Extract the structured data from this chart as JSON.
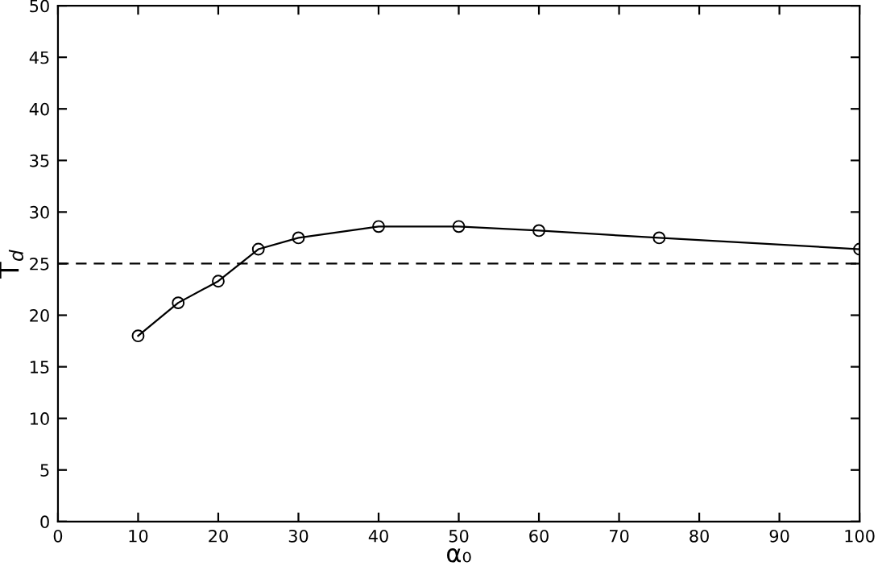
{
  "chart_data": {
    "type": "line",
    "xlabel": "α₀",
    "ylabel": "T$_{d}$",
    "x": [
      10,
      15,
      20,
      25,
      30,
      40,
      50,
      60,
      75,
      100
    ],
    "series": [
      {
        "color": "#000000",
        "values": [
          18,
          21.2,
          23.3,
          26.4,
          27.5,
          28.6,
          28.6,
          28.2,
          27.5,
          26.4
        ]
      }
    ],
    "marker": "circle",
    "line_style": "solid",
    "xlim": [
      0,
      100
    ],
    "ylim": [
      0,
      50
    ],
    "xticks": [
      0,
      10,
      20,
      30,
      40,
      50,
      60,
      70,
      80,
      90,
      100
    ],
    "yticks": [
      0,
      5,
      10,
      15,
      20,
      25,
      30,
      35,
      40,
      45,
      50
    ],
    "ref_lines": [
      {
        "axis": "y",
        "value": 25,
        "label": null,
        "color": "#000000",
        "line_style": "dashed"
      }
    ],
    "grid": false,
    "legend": false
  }
}
